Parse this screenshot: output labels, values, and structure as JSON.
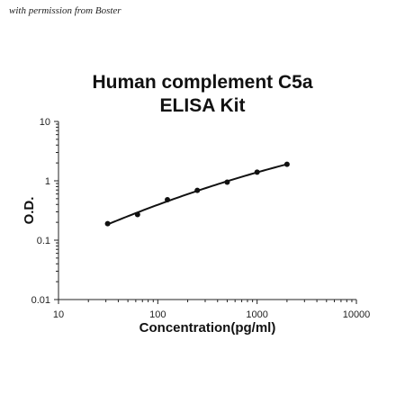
{
  "watermark": "with permission from Boster",
  "chart_data": {
    "type": "scatter",
    "title_lines": [
      "Human complement C5a",
      "ELISA Kit"
    ],
    "xlabel": "Concentration(pg/ml)",
    "ylabel": "O.D.",
    "xscale": "log",
    "yscale": "log",
    "xlim": [
      10,
      10000
    ],
    "ylim": [
      0.01,
      10
    ],
    "x_ticks": [
      "10",
      "100",
      "1000",
      "10000"
    ],
    "y_ticks": [
      "10",
      "1",
      "0.1",
      "0.01"
    ],
    "grid": false,
    "legend": "none",
    "series": [
      {
        "points": [
          {
            "x": 31.25,
            "y": 0.19
          },
          {
            "x": 62.5,
            "y": 0.27
          },
          {
            "x": 125,
            "y": 0.48
          },
          {
            "x": 250,
            "y": 0.69
          },
          {
            "x": 500,
            "y": 0.95
          },
          {
            "x": 1000,
            "y": 1.4
          },
          {
            "x": 2000,
            "y": 1.9
          }
        ],
        "fit_curve": true
      }
    ]
  }
}
